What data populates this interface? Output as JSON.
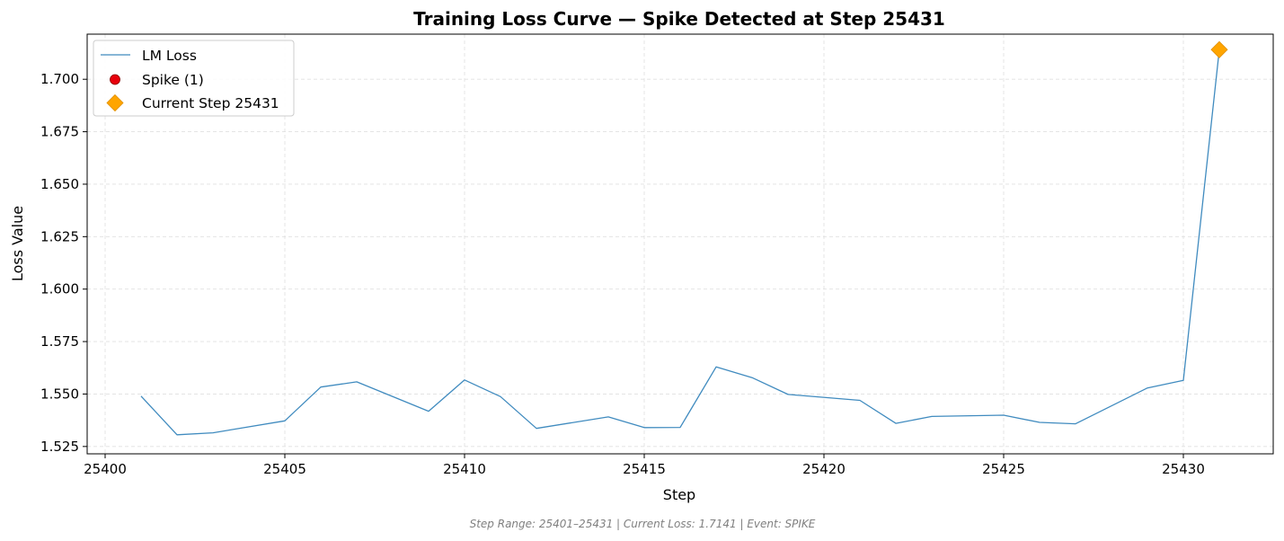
{
  "chart_data": {
    "type": "line",
    "title": "Training Loss Curve — Spike Detected at Step 25431",
    "xlabel": "Step",
    "ylabel": "Loss Value",
    "xlim": [
      25399.5,
      25432.5
    ],
    "ylim": [
      1.5215,
      1.7215
    ],
    "xticks": [
      25400,
      25405,
      25410,
      25415,
      25420,
      25425,
      25430
    ],
    "xtick_labels": [
      "25400",
      "25405",
      "25410",
      "25415",
      "25420",
      "25425",
      "25430"
    ],
    "yticks": [
      1.525,
      1.55,
      1.575,
      1.6,
      1.625,
      1.65,
      1.675,
      1.7
    ],
    "ytick_labels": [
      "1.525",
      "1.550",
      "1.575",
      "1.600",
      "1.625",
      "1.650",
      "1.675",
      "1.700"
    ],
    "grid": true,
    "legend_position": "top-left",
    "series": [
      {
        "name": "LM Loss",
        "color": "#1f77b4",
        "x": [
          25401,
          25402,
          25403,
          25405,
          25406,
          25407,
          25409,
          25410,
          25411,
          25412,
          25414,
          25415,
          25416,
          25417,
          25418,
          25419,
          25421,
          25422,
          25423,
          25425,
          25426,
          25427,
          25429,
          25430,
          25431
        ],
        "y": [
          1.549,
          1.5306,
          1.5315,
          1.5372,
          1.5533,
          1.5558,
          1.5418,
          1.5567,
          1.5488,
          1.5336,
          1.5391,
          1.534,
          1.5341,
          1.5629,
          1.5578,
          1.5498,
          1.547,
          1.536,
          1.5393,
          1.5399,
          1.5365,
          1.5358,
          1.5529,
          1.5565,
          1.7141
        ]
      }
    ],
    "legend": [
      {
        "label": "LM Loss",
        "marker": "line",
        "color": "#1f77b4"
      },
      {
        "label": "Spike (1)",
        "marker": "circle",
        "color": "#e8000b"
      },
      {
        "label": "Current Step 25431",
        "marker": "diamond",
        "color": "#ffa500"
      }
    ],
    "current_step": {
      "x": 25431,
      "y": 1.7141,
      "color": "#ffa500"
    },
    "footer": "Step Range: 25401–25431 | Current Loss: 1.7141 | Event: SPIKE"
  }
}
